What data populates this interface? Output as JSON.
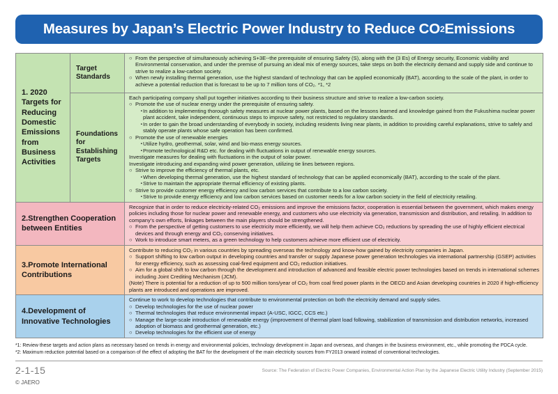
{
  "title": {
    "before": "Measures by Japan’s Electric Power Industry to Reduce CO",
    "sub": "2",
    "after": " Emissions"
  },
  "sections": {
    "s1": {
      "label": "1. 2020 Targets for Reducing Domestic Emissions from Business Activities",
      "target": {
        "label": "Target Standards",
        "lines": [
          "From the perspective of simultaneously achieving S+3E--the prerequisite of ensuring Safety (S), along with the (3 Es) of Energy security, Economic viability and Environmental conservation, and under the premise of pursuing an ideal mix of energy sources, take steps on both the electricity demand and supply side and continue to strive to realize a low-carbon society.",
          "When newly installing thermal generation, use the highest standard of technology that can be applied economically (BAT), according to the scale of the plant, in order to achieve a potential reduction that is forecast to be up to 7 million tons of CO₂. *1, *2"
        ]
      },
      "foundations": {
        "label": "Foundations for Establishing Targets",
        "intro": "Each participating company shall put together initiatives according to their business structure and strive to realize a low-carbon society.",
        "nuclear": "Promote the use of nuclear energy under the prerequisite of ensuring safety.",
        "nuclear_dots": [
          "In addition to implementing thorough safety measures at nuclear power plants, based on the lessons learned and knowledge gained from the Fukushima nuclear power plant accident, take independent, continuous steps to improve safety, not restricted to regulatory standards.",
          "In order to gain the broad understanding of everybody in society, including residents living near plants, in addition to providing careful explanations, strive to safely and stably operate plants whose safe operation has been confirmed."
        ],
        "renewable": "Promote the use of renewable energies",
        "renewable_dots": [
          "Utilize hydro, geothermal, solar, wind and bio-mass energy sources.",
          "Promote technological R&D etc. for dealing with fluctuations in output of renewable energy sources."
        ],
        "investigate": [
          "Investigate measures for dealing with fluctuations in the output of solar power.",
          "Investigate introducing and expanding wind power generation, utilizing tie lines between regions."
        ],
        "thermal": "Strive to improve the efficiency of thermal plants, etc.",
        "thermal_dots": [
          "When developing thermal generation, use the highest standard of technology that can be applied economically (BAT), according to the scale of the plant.",
          "Strive to maintain the appropriate thermal efficiency of existing plants."
        ],
        "services": "Strive to provide customer energy efficiency and low carbon services that contribute to a low carbon society.",
        "services_dots": [
          "Strive to provide energy efficiency and low carbon services based on customer needs for a low carbon society in the field of electricity retailing."
        ]
      }
    },
    "s2": {
      "label": "2.Strengthen Cooperation between Entities",
      "intro": "Recognize that in order to reduce electricity-related CO₂ emissions and improve the emissions factor, cooperation is essential between the government, which makes energy policies including those for nuclear power and renewable energy, and customers who use electricity via generation, transmission and distribution, and retailing. In addition to company’s own efforts, linkages between the main players should be strengthened.",
      "lines": [
        "From the perspective of getting customers to use electricity more efficiently, we will help them achieve CO₂ reductions by spreading the use of highly efficient electrical devices and through energy and CO₂ conserving initiatives.",
        "Work to introduce smart meters, as a green technology to help customers achieve more efficient use of electricity."
      ]
    },
    "s3": {
      "label": "3.Promote International Contributions",
      "intro": "Contribute to reducing CO₂ in various countries by spreading overseas the technology and know-how gained by electricity companies in Japan.",
      "lines": [
        "Support shifting to low carbon output in developing countries and transfer or supply Japanese power generation technologies via international partnership (GSEP) activities for energy efficiency, such as assessing coal-fired equipment and CO₂ reduction initiatives.",
        "Aim for a global shift to low carbon through the development and introduction of advanced and feasible electric power technologies based on trends in international schemes including Joint Crediting Mechanism (JCM)."
      ],
      "note": "(Note) There is potential for a reduction of up to 500 million tons/year of CO₂ from coal fired power plants in the OECD and Asian developing countries in 2020 if high-efficiency plants are introduced and operations are improved."
    },
    "s4": {
      "label": "4.Development of Innovative Technologies",
      "intro": "Continue to work to develop technologies that contribute to environmental protection on both the electricity demand and supply sides.",
      "lines": [
        "Develop technologies for the use of nuclear power",
        "Thermal technologies that reduce environmental impact (A-USC, IGCC, CCS etc.)",
        "Manage the large-scale introduction of renewable energy (improvement of thermal plant load following, stabilization of transmission and distribution networks, increased adoption of biomass and geothermal generation, etc.)",
        "Develop technologies for the efficient use of energy"
      ]
    }
  },
  "footnotes": [
    "*1: Review these targets and action plans as necessary based on trends in energy and environmental policies, technology development in Japan and overseas, and changes in the business environment, etc., while promoting the PDCA cycle.",
    "*2: Maximum reduction potential based on a comparison of the effect of adopting the BAT for the development of the main electricity sources from FY2013 onward instead of conventional technologies."
  ],
  "footer": {
    "page": "2-1-15",
    "copyright": "© JAERO",
    "source": "Source: The Federation of Electric Power Companies, Environmental Action Plan by the Japanese Electric Utility Industry (September 2015)"
  },
  "colors": {
    "title_bar": "#1f62b0",
    "green": "#c4e3b2",
    "pink": "#f3b7bf",
    "orange": "#f8c9a2",
    "blue": "#a9d1ec"
  }
}
